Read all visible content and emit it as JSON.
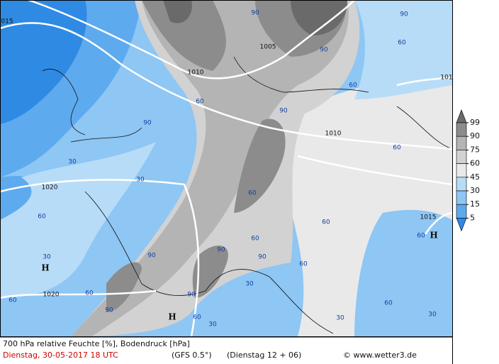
{
  "map": {
    "contour_labels": [
      "015",
      "1005",
      "1010",
      "1010",
      "1020",
      "1020",
      "1015",
      "101",
      "H",
      "H",
      "H",
      "90",
      "90",
      "90",
      "60",
      "60",
      "60",
      "90",
      "90",
      "60",
      "60",
      "30",
      "60",
      "30",
      "90",
      "60",
      "90",
      "90",
      "60",
      "60",
      "60",
      "30",
      "60",
      "90",
      "90",
      "60",
      "30",
      "60",
      "30",
      "30",
      "60",
      "30"
    ],
    "legend": {
      "levels": [
        99,
        90,
        75,
        60,
        45,
        30,
        15,
        5
      ],
      "colors": [
        "#6a6a6a",
        "#8c8c8c",
        "#b4b4b4",
        "#d2d2d2",
        "#e9e9e9",
        "#b7dcf8",
        "#8ec6f4",
        "#5eaaee",
        "#2f8ae4"
      ]
    }
  },
  "footer": {
    "title": "700 hPa relative Feuchte [%], Bodendruck [hPa]",
    "date": "Dienstag, 30-05-2017  18 UTC",
    "model": "(GFS 0.5°)",
    "run": "(Dienstag 12 + 06)",
    "credit": "© www.wetter3.de"
  }
}
